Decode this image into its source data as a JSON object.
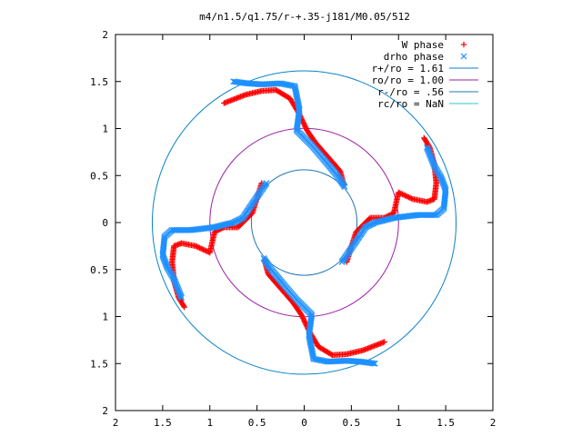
{
  "chart_data": {
    "type": "scatter",
    "title": "m4/n1.5/q1.75/r-+.35-j181/M0.05/512",
    "xlabel": "",
    "ylabel": "",
    "xlim": [
      -2,
      2
    ],
    "ylim": [
      -2,
      2
    ],
    "grid": false,
    "legend_position": "top-right",
    "x_ticks": [
      "2",
      "1.5",
      "1",
      "0.5",
      "0",
      "0.5",
      "1",
      "1.5",
      "2"
    ],
    "y_ticks": [
      "2",
      "1.5",
      "1",
      "0.5",
      "0",
      "0.5",
      "1",
      "1.5",
      "2"
    ],
    "circles": [
      {
        "label": "r+/ro = 1.61",
        "radius": 1.61,
        "color": "#0a82c8"
      },
      {
        "label": "ro/ro = 1.00",
        "radius": 1.0,
        "color": "#9b1fa8"
      },
      {
        "label": "r-/ro = .56",
        "radius": 0.56,
        "color": "#1f78b4"
      },
      {
        "label": "rc/ro = NaN",
        "radius": null,
        "color": "#2bc4d4"
      }
    ],
    "series": [
      {
        "name": "W phase",
        "marker": "+",
        "color": "#ff0000",
        "arms": [
          {
            "x": [
              0.42,
              0.38,
              0.25,
              0.12,
              0.03,
              -0.05,
              -0.15,
              -0.3,
              -0.45,
              -0.62,
              -0.85
            ],
            "y": [
              0.4,
              0.55,
              0.7,
              0.85,
              0.98,
              1.15,
              1.32,
              1.41,
              1.4,
              1.36,
              1.27
            ]
          },
          {
            "x": [
              1.27,
              1.33,
              1.38,
              1.4,
              1.38,
              1.3,
              1.15,
              1.0,
              0.95,
              0.85,
              0.7,
              0.55,
              0.45
            ],
            "y": [
              0.9,
              0.8,
              0.62,
              0.42,
              0.25,
              0.22,
              0.25,
              0.32,
              0.1,
              0.05,
              0.05,
              -0.1,
              -0.42
            ]
          },
          {
            "x": [
              -0.42,
              -0.38,
              -0.25,
              -0.12,
              -0.03,
              0.05,
              0.15,
              0.3,
              0.45,
              0.62,
              0.85
            ],
            "y": [
              -0.4,
              -0.55,
              -0.7,
              -0.85,
              -0.98,
              -1.15,
              -1.32,
              -1.41,
              -1.4,
              -1.36,
              -1.27
            ]
          },
          {
            "x": [
              -1.27,
              -1.33,
              -1.38,
              -1.4,
              -1.38,
              -1.3,
              -1.15,
              -1.0,
              -0.95,
              -0.85,
              -0.7,
              -0.55,
              -0.45
            ],
            "y": [
              -0.9,
              -0.8,
              -0.62,
              -0.42,
              -0.25,
              -0.22,
              -0.25,
              -0.32,
              -0.1,
              -0.05,
              -0.05,
              0.1,
              0.42
            ]
          }
        ]
      },
      {
        "name": "drho phase",
        "marker": "x",
        "color": "#1e90ff",
        "arms": [
          {
            "x": [
              0.43,
              0.35,
              0.2,
              0.08,
              -0.08,
              -0.05,
              -0.1,
              -0.25,
              -0.45,
              -0.6,
              -0.75
            ],
            "y": [
              0.38,
              0.5,
              0.68,
              0.82,
              0.98,
              1.2,
              1.45,
              1.48,
              1.47,
              1.48,
              1.5
            ]
          },
          {
            "x": [
              1.3,
              1.38,
              1.45,
              1.5,
              1.48,
              1.4,
              1.2,
              0.95,
              0.75,
              0.65,
              0.55,
              0.4
            ],
            "y": [
              0.8,
              0.6,
              0.48,
              0.35,
              0.15,
              0.08,
              0.08,
              0.05,
              0.0,
              -0.05,
              -0.2,
              -0.42
            ]
          },
          {
            "x": [
              -0.43,
              -0.35,
              -0.2,
              -0.08,
              0.08,
              0.05,
              0.1,
              0.25,
              0.45,
              0.6,
              0.75
            ],
            "y": [
              -0.38,
              -0.5,
              -0.68,
              -0.82,
              -0.98,
              -1.2,
              -1.45,
              -1.48,
              -1.47,
              -1.48,
              -1.5
            ]
          },
          {
            "x": [
              -1.3,
              -1.38,
              -1.45,
              -1.5,
              -1.48,
              -1.4,
              -1.2,
              -0.95,
              -0.75,
              -0.65,
              -0.55,
              -0.4
            ],
            "y": [
              -0.8,
              -0.6,
              -0.48,
              -0.35,
              -0.15,
              -0.08,
              -0.08,
              -0.05,
              0.0,
              0.05,
              0.2,
              0.42
            ]
          }
        ]
      }
    ]
  }
}
